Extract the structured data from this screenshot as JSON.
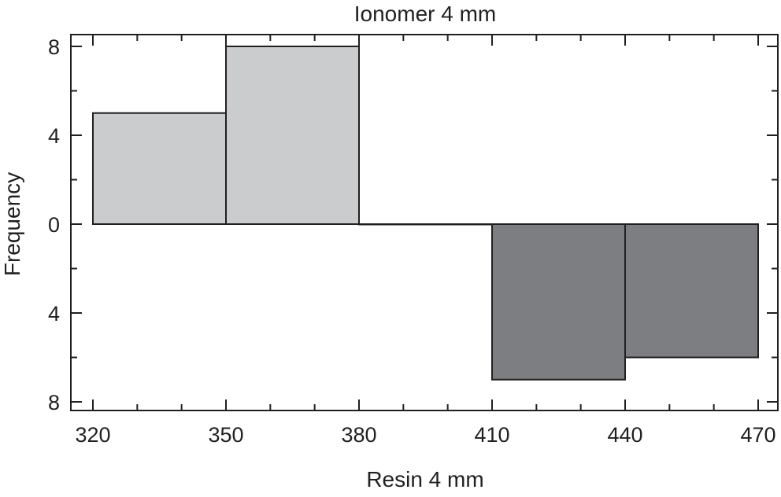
{
  "chart_data": {
    "type": "bar",
    "title": "Ionomer 4 mm",
    "xlabel": "Resin 4 mm",
    "ylabel": "Frequency",
    "xlim": [
      320,
      470
    ],
    "x_ticks": [
      "320",
      "350",
      "380",
      "410",
      "440",
      "470"
    ],
    "ylim": [
      -8,
      8
    ],
    "y_ticks": [
      "8",
      "4",
      "0",
      "4",
      "8"
    ],
    "grid": false,
    "legend": "none",
    "series": [
      {
        "color": "#cbcccd",
        "direction": "up",
        "bins": [
          {
            "x0": 320,
            "x1": 350,
            "value": 5
          },
          {
            "x0": 350,
            "x1": 380,
            "value": 8
          },
          {
            "x0": 380,
            "x1": 410,
            "value": 0
          }
        ]
      },
      {
        "color": "#7d7e82",
        "direction": "down",
        "bins": [
          {
            "x0": 410,
            "x1": 440,
            "value": 7
          },
          {
            "x0": 440,
            "x1": 470,
            "value": 6
          }
        ]
      }
    ]
  }
}
